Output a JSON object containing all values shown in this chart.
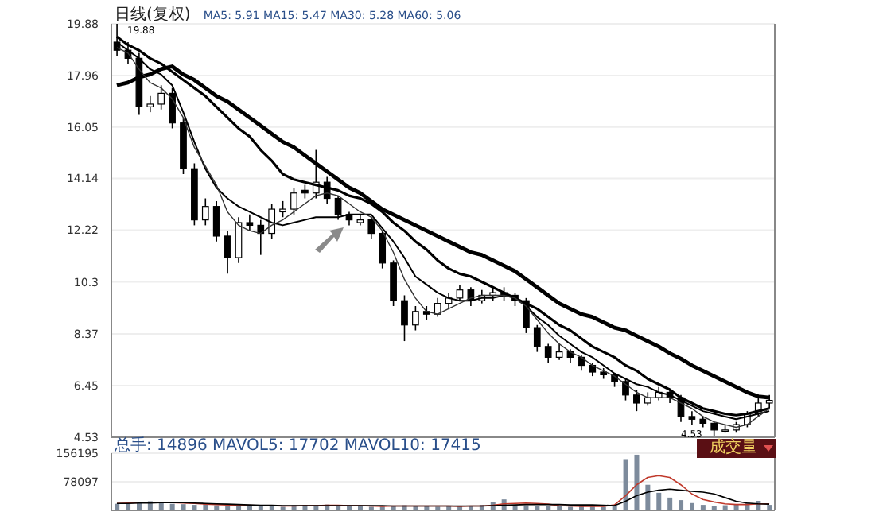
{
  "chart_data": [
    {
      "type": "candlestick",
      "title": "日线(复权)",
      "subtitle": "MA5: 5.91  MA15: 5.47  MA30: 5.28  MA60: 5.06",
      "categories": [
        null,
        null,
        null,
        null,
        null,
        null,
        null,
        null,
        null,
        null,
        null,
        null,
        null,
        null,
        null,
        null,
        null,
        null,
        null,
        null,
        null,
        null,
        null,
        null,
        null,
        null,
        null,
        null,
        null,
        null,
        null,
        null,
        null,
        null,
        null,
        null,
        null,
        null,
        null,
        null,
        null,
        null,
        null,
        null,
        null,
        null,
        null,
        null,
        null,
        null,
        null,
        null,
        null,
        null,
        null,
        null,
        null,
        null,
        null,
        null
      ],
      "color": "#000000",
      "ohlc": [
        [
          19.2,
          19.88,
          18.7,
          18.9
        ],
        [
          18.9,
          19.2,
          18.4,
          18.6
        ],
        [
          18.6,
          18.8,
          16.5,
          16.8
        ],
        [
          16.8,
          17.2,
          16.6,
          16.9
        ],
        [
          16.9,
          17.6,
          16.7,
          17.3
        ],
        [
          17.3,
          17.5,
          16.0,
          16.2
        ],
        [
          16.2,
          16.4,
          14.3,
          14.5
        ],
        [
          14.5,
          14.7,
          12.4,
          12.6
        ],
        [
          12.6,
          13.4,
          12.4,
          13.1
        ],
        [
          13.1,
          13.3,
          11.8,
          12.0
        ],
        [
          12.0,
          12.2,
          10.6,
          11.2
        ],
        [
          11.2,
          12.7,
          11.0,
          12.5
        ],
        [
          12.5,
          12.8,
          12.2,
          12.4
        ],
        [
          12.4,
          12.6,
          11.3,
          12.1
        ],
        [
          12.1,
          13.2,
          11.9,
          13.0
        ],
        [
          12.9,
          13.3,
          12.7,
          13.0
        ],
        [
          13.0,
          13.8,
          12.8,
          13.6
        ],
        [
          13.7,
          13.9,
          13.4,
          13.6
        ],
        [
          13.6,
          15.2,
          13.4,
          14.0
        ],
        [
          14.0,
          14.2,
          13.2,
          13.4
        ],
        [
          13.4,
          13.5,
          12.6,
          12.8
        ],
        [
          12.8,
          12.9,
          12.4,
          12.6
        ],
        [
          12.5,
          12.8,
          12.4,
          12.6
        ],
        [
          12.6,
          12.7,
          11.9,
          12.1
        ],
        [
          12.1,
          12.2,
          10.8,
          11.0
        ],
        [
          11.0,
          11.1,
          9.4,
          9.6
        ],
        [
          9.6,
          9.8,
          8.1,
          8.7
        ],
        [
          8.7,
          9.4,
          8.5,
          9.2
        ],
        [
          9.2,
          9.4,
          8.9,
          9.1
        ],
        [
          9.1,
          9.7,
          9.0,
          9.5
        ],
        [
          9.5,
          9.9,
          9.3,
          9.7
        ],
        [
          9.7,
          10.2,
          9.6,
          10.0
        ],
        [
          10.0,
          10.1,
          9.4,
          9.6
        ],
        [
          9.6,
          10.0,
          9.5,
          9.8
        ],
        [
          9.8,
          10.1,
          9.6,
          9.9
        ],
        [
          9.9,
          10.1,
          9.6,
          9.8
        ],
        [
          9.8,
          9.9,
          9.4,
          9.6
        ],
        [
          9.6,
          9.7,
          8.4,
          8.6
        ],
        [
          8.6,
          8.7,
          7.7,
          7.9
        ],
        [
          7.9,
          8.0,
          7.3,
          7.5
        ],
        [
          7.5,
          8.0,
          7.4,
          7.7
        ],
        [
          7.7,
          7.8,
          7.3,
          7.5
        ],
        [
          7.5,
          7.6,
          7.0,
          7.2
        ],
        [
          7.2,
          7.3,
          6.8,
          6.95
        ],
        [
          6.95,
          7.1,
          6.7,
          6.85
        ],
        [
          6.85,
          6.9,
          6.4,
          6.6
        ],
        [
          6.6,
          6.7,
          5.9,
          6.1
        ],
        [
          6.1,
          6.3,
          5.5,
          5.8
        ],
        [
          5.8,
          6.2,
          5.7,
          6.0
        ],
        [
          6.0,
          6.4,
          5.9,
          6.2
        ],
        [
          6.2,
          6.3,
          5.8,
          6.0
        ],
        [
          6.0,
          6.1,
          5.1,
          5.3
        ],
        [
          5.3,
          5.5,
          5.0,
          5.2
        ],
        [
          5.2,
          5.3,
          4.9,
          5.05
        ],
        [
          5.05,
          5.1,
          4.53,
          4.8
        ],
        [
          4.75,
          5.0,
          4.7,
          4.8
        ],
        [
          4.8,
          5.1,
          4.7,
          5.0
        ],
        [
          5.0,
          5.5,
          4.9,
          5.4
        ],
        [
          5.4,
          6.0,
          5.3,
          5.8
        ],
        [
          5.8,
          6.1,
          5.6,
          5.9
        ]
      ],
      "series": [
        {
          "type": "line",
          "color": "#000000",
          "values": [
            17.6,
            17.7,
            17.9,
            18.0,
            18.2,
            18.3,
            18.0,
            17.8,
            17.5,
            17.2,
            17.0,
            16.7,
            16.4,
            16.1,
            15.8,
            15.5,
            15.3,
            15.0,
            14.7,
            14.4,
            14.1,
            13.8,
            13.6,
            13.3,
            13.0,
            12.8,
            12.6,
            12.4,
            12.2,
            12.0,
            11.8,
            11.6,
            11.4,
            11.3,
            11.1,
            10.9,
            10.7,
            10.4,
            10.1,
            9.8,
            9.5,
            9.3,
            9.1,
            9.0,
            8.8,
            8.6,
            8.5,
            8.3,
            8.1,
            7.9,
            7.65,
            7.45,
            7.2,
            7.0,
            6.8,
            6.6,
            6.4,
            6.2,
            6.05,
            6.0
          ]
        },
        {
          "type": "line",
          "color": "#000000",
          "values": [
            19.4,
            19.1,
            18.9,
            18.6,
            18.4,
            18.1,
            17.8,
            17.5,
            17.2,
            16.8,
            16.4,
            16.0,
            15.7,
            15.2,
            14.8,
            14.3,
            14.1,
            14.0,
            13.9,
            13.8,
            13.7,
            13.5,
            13.4,
            13.2,
            12.9,
            12.5,
            12.2,
            11.8,
            11.5,
            11.1,
            10.8,
            10.6,
            10.5,
            10.3,
            10.1,
            9.9,
            9.7,
            9.5,
            9.3,
            9.0,
            8.7,
            8.5,
            8.2,
            7.9,
            7.7,
            7.5,
            7.2,
            7.0,
            6.7,
            6.5,
            6.3,
            6.0,
            5.8,
            5.6,
            5.5,
            5.4,
            5.35,
            5.4,
            5.5,
            5.6
          ]
        },
        {
          "type": "line",
          "color": "#000000",
          "values": [
            19.2,
            18.9,
            18.6,
            18.2,
            18.0,
            17.6,
            16.6,
            15.5,
            14.5,
            13.8,
            13.4,
            13.1,
            12.9,
            12.7,
            12.5,
            12.4,
            12.5,
            12.6,
            12.7,
            12.7,
            12.7,
            12.8,
            12.8,
            12.8,
            12.3,
            11.8,
            11.2,
            10.5,
            10.2,
            9.9,
            9.7,
            9.6,
            9.6,
            9.7,
            9.7,
            9.8,
            9.7,
            9.4,
            9.0,
            8.7,
            8.3,
            8.0,
            7.7,
            7.5,
            7.2,
            6.9,
            6.7,
            6.5,
            6.4,
            6.2,
            6.1,
            5.9,
            5.7,
            5.5,
            5.4,
            5.3,
            5.2,
            5.3,
            5.4,
            5.5
          ]
        },
        {
          "type": "line",
          "color": "#333333",
          "values": [
            19.0,
            18.8,
            18.2,
            17.7,
            17.5,
            17.1,
            16.4,
            15.3,
            14.6,
            13.9,
            12.9,
            12.4,
            12.2,
            12.1,
            12.4,
            12.6,
            12.9,
            13.2,
            13.5,
            13.6,
            13.5,
            13.2,
            12.9,
            12.7,
            12.2,
            11.4,
            10.4,
            9.7,
            9.2,
            9.1,
            9.3,
            9.5,
            9.7,
            9.8,
            9.8,
            9.8,
            9.7,
            9.4,
            8.9,
            8.4,
            8.0,
            7.7,
            7.5,
            7.2,
            7.0,
            6.8,
            6.5,
            6.2,
            6.0,
            6.0,
            6.0,
            5.8,
            5.6,
            5.3,
            5.1,
            5.0,
            4.9,
            5.0,
            5.3,
            5.6
          ]
        }
      ],
      "ylim": [
        4.53,
        19.88
      ],
      "yticks": [
        4.53,
        6.45,
        8.37,
        10.3,
        12.22,
        14.14,
        16.05,
        17.96,
        19.88
      ],
      "grid": "y",
      "tick_labels": "y",
      "annotations": [
        "19.88",
        "4.53"
      ]
    },
    {
      "type": "bar",
      "title": "总手: 14896  MAVOL5: 17702  MAVOL10: 17415",
      "categories": [
        null,
        null,
        null,
        null,
        null,
        null,
        null,
        null,
        null,
        null,
        null,
        null,
        null,
        null,
        null,
        null,
        null,
        null,
        null,
        null,
        null,
        null,
        null,
        null,
        null,
        null,
        null,
        null,
        null,
        null,
        null,
        null,
        null,
        null,
        null,
        null,
        null,
        null,
        null,
        null,
        null,
        null,
        null,
        null,
        null,
        null,
        null,
        null,
        null,
        null,
        null,
        null,
        null,
        null,
        null,
        null,
        null,
        null,
        null,
        null
      ],
      "series": [
        {
          "color": "#7d8b9c",
          "values": [
            18000,
            22000,
            20000,
            25000,
            21000,
            18000,
            17000,
            15000,
            16000,
            14000,
            15000,
            12000,
            11000,
            13000,
            12000,
            10000,
            14000,
            15000,
            13000,
            16000,
            12000,
            11000,
            12000,
            10000,
            11000,
            13000,
            14000,
            12000,
            11000,
            10000,
            12000,
            11000,
            13000,
            15000,
            22000,
            30000,
            15000,
            14000,
            13000,
            12000,
            11000,
            10000,
            12000,
            11000,
            10000,
            13000,
            140000,
            152000,
            70000,
            48000,
            35000,
            28000,
            20000,
            15000,
            12000,
            14000,
            16000,
            22000,
            26000,
            15000
          ]
        },
        {
          "type": "line",
          "color": "#c0392b",
          "values": [
            19000,
            20000,
            21000,
            22000,
            21000,
            21000,
            20000,
            19000,
            17000,
            16000,
            15000,
            14000,
            14000,
            13000,
            13000,
            12000,
            12000,
            13000,
            13000,
            14000,
            14000,
            13000,
            13000,
            12000,
            11000,
            12000,
            12000,
            12000,
            12000,
            12000,
            12000,
            11000,
            12000,
            12000,
            14000,
            18000,
            19000,
            20000,
            19000,
            17000,
            13000,
            12000,
            11000,
            11000,
            11000,
            15000,
            40000,
            70000,
            90000,
            95000,
            90000,
            70000,
            45000,
            30000,
            23000,
            18000,
            16000,
            16000,
            18000,
            18000
          ]
        },
        {
          "type": "line",
          "color": "#000000",
          "values": [
            19000,
            19000,
            20000,
            20000,
            21000,
            21000,
            21000,
            20000,
            19000,
            18000,
            17000,
            16000,
            15000,
            14000,
            14000,
            13000,
            13000,
            13000,
            13000,
            13000,
            13000,
            13000,
            13000,
            13000,
            13000,
            12000,
            12000,
            12000,
            12000,
            12000,
            12000,
            12000,
            12000,
            12000,
            13000,
            14000,
            15000,
            16000,
            16000,
            16000,
            16000,
            15000,
            15000,
            15000,
            14000,
            13000,
            25000,
            40000,
            50000,
            55000,
            58000,
            55000,
            52000,
            50000,
            45000,
            35000,
            25000,
            20000,
            18000,
            17000
          ]
        }
      ],
      "ylim": [
        0,
        156195
      ],
      "yticks": [
        78097,
        156195
      ],
      "grid": "y",
      "tick_labels": "y",
      "annotations": [
        "成交量"
      ]
    }
  ]
}
